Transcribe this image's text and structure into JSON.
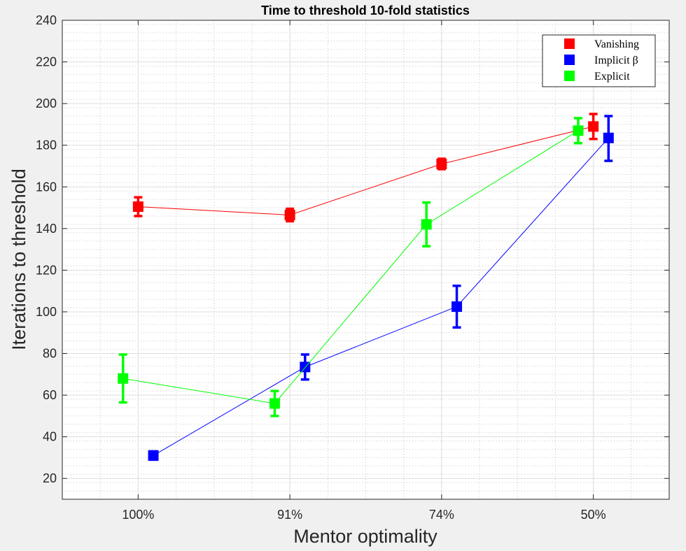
{
  "chart_data": {
    "type": "line",
    "title": "Time to threshold 10-fold statistics",
    "xlabel": "Mentor optimality",
    "ylabel": "Iterations to threshold",
    "categories": [
      "100%",
      "91%",
      "74%",
      "50%"
    ],
    "ylim": [
      10,
      240
    ],
    "yticks": [
      20,
      40,
      60,
      80,
      100,
      120,
      140,
      160,
      180,
      200,
      220,
      240
    ],
    "grid": true,
    "minor_grid": true,
    "legend_position": "top-right",
    "series": [
      {
        "name": "Vanishing",
        "color": "#ff0000",
        "x": [
          1.0,
          2.0,
          3.0,
          4.0
        ],
        "values": [
          150.5,
          146.5,
          171,
          189
        ],
        "err_low": [
          146,
          143.5,
          168.5,
          183
        ],
        "err_high": [
          155,
          149.5,
          173.5,
          195
        ]
      },
      {
        "name": "Implicit β",
        "color": "#0000ff",
        "x": [
          1.1,
          2.1,
          3.1,
          4.1
        ],
        "values": [
          31,
          73.5,
          102.5,
          183.5
        ],
        "err_low": [
          29,
          67.5,
          92.5,
          172.5
        ],
        "err_high": [
          33,
          79.5,
          112.5,
          194
        ]
      },
      {
        "name": "Explicit",
        "color": "#00ff00",
        "x": [
          0.9,
          1.9,
          2.9,
          3.9
        ],
        "values": [
          68,
          56,
          142,
          187
        ],
        "err_low": [
          56.5,
          50,
          131.5,
          181
        ],
        "err_high": [
          79.5,
          62,
          152.5,
          193
        ]
      }
    ]
  }
}
